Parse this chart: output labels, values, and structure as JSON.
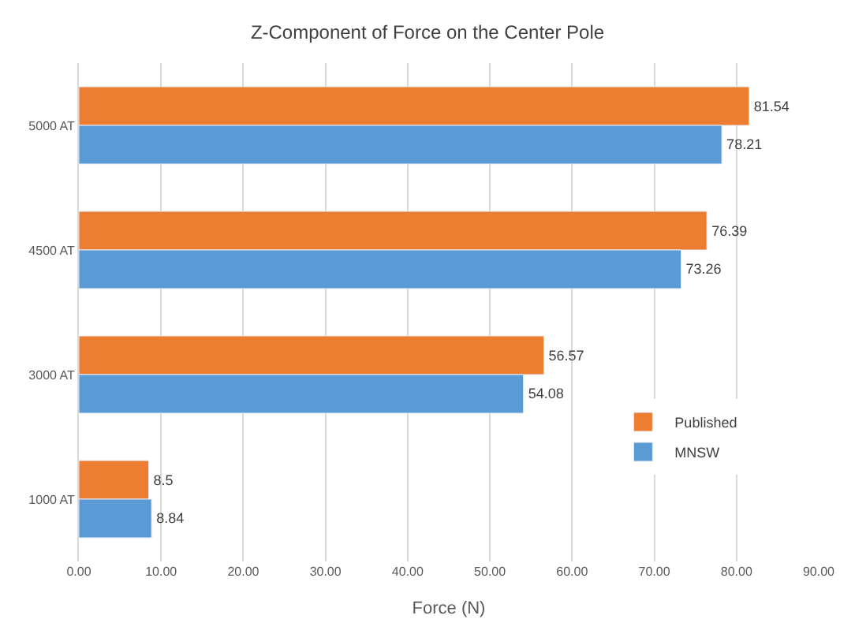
{
  "chart_data": {
    "type": "bar",
    "orientation": "horizontal",
    "title": "Z-Component of Force on the Center Pole",
    "xlabel": "Force (N)",
    "categories": [
      "5000 AT",
      "4500 AT",
      "3000 AT",
      "1000 AT"
    ],
    "series": [
      {
        "name": "Published",
        "color": "#ed7d31",
        "values": [
          81.54,
          76.39,
          56.57,
          8.5
        ]
      },
      {
        "name": "MNSW",
        "color": "#5b9bd5",
        "values": [
          78.21,
          73.26,
          54.08,
          8.84
        ]
      }
    ],
    "xlim": [
      0,
      90
    ],
    "xticks": [
      {
        "value": 0,
        "label": "0.00"
      },
      {
        "value": 10,
        "label": "10.00"
      },
      {
        "value": 20,
        "label": "20.00"
      },
      {
        "value": 30,
        "label": "30.00"
      },
      {
        "value": 40,
        "label": "40.00"
      },
      {
        "value": 50,
        "label": "50.00"
      },
      {
        "value": 60,
        "label": "60.00"
      },
      {
        "value": 70,
        "label": "70.00"
      },
      {
        "value": 80,
        "label": "80.00"
      },
      {
        "value": 90,
        "label": "90.00"
      }
    ],
    "grid": "x",
    "legend": "right",
    "data_labels": true
  }
}
